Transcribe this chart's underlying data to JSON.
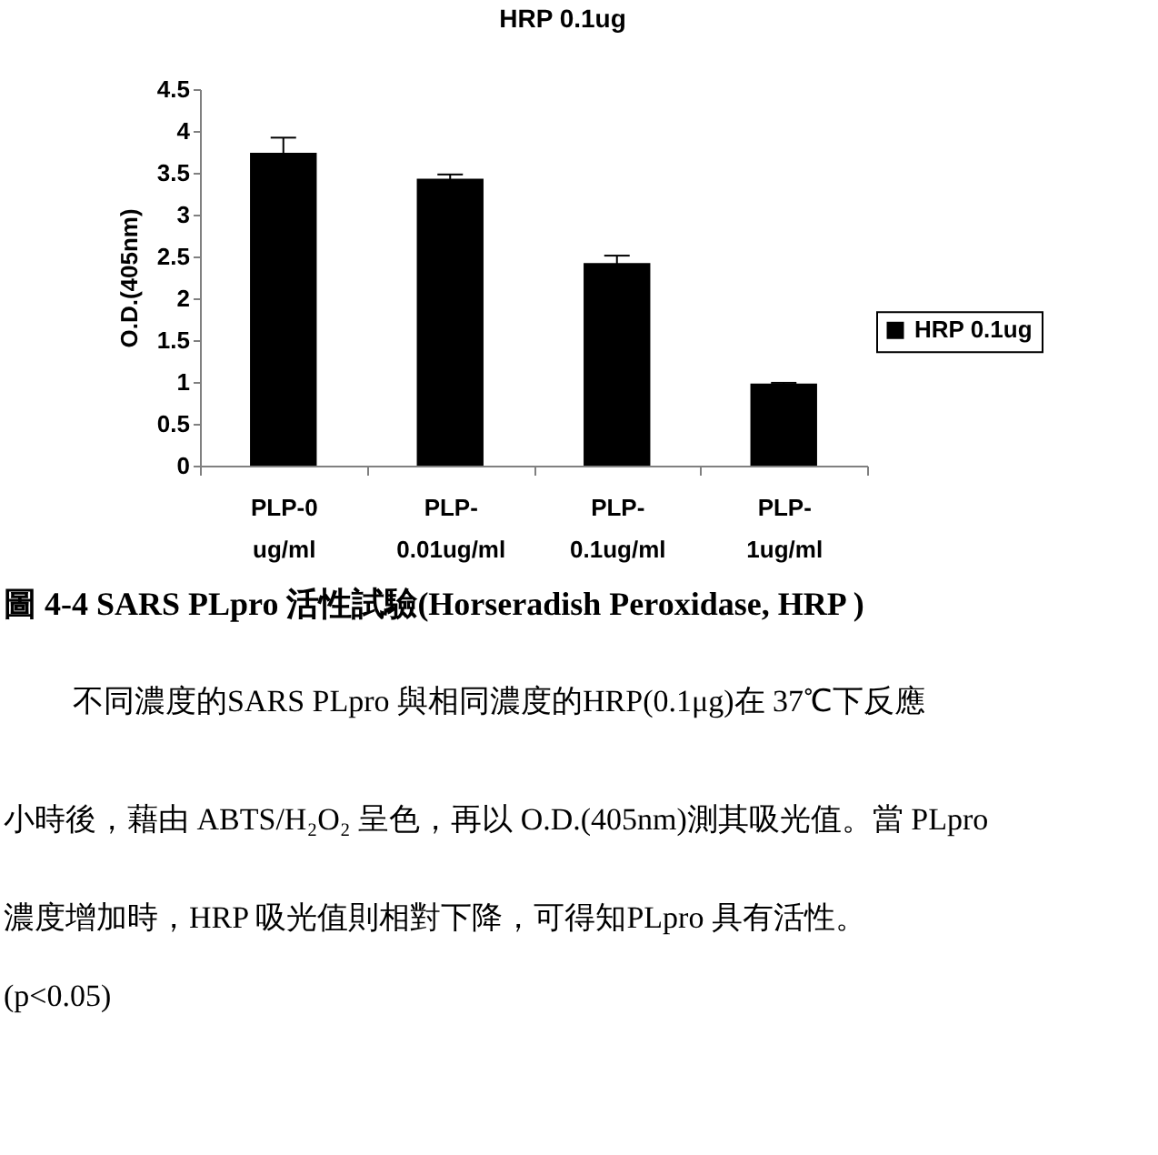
{
  "chart_data": {
    "type": "bar",
    "title": "HRP 0.1ug",
    "ylabel": "O.D.(405nm)",
    "categories": [
      "PLP-0 ug/ml",
      "PLP-0.01ug/ml",
      "PLP-0.1ug/ml",
      "PLP-1ug/ml"
    ],
    "series": [
      {
        "name": "HRP 0.1ug",
        "color": "#000000",
        "values": [
          3.74,
          3.43,
          2.42,
          0.98
        ],
        "errors": [
          0.18,
          0.05,
          0.09,
          0.01
        ]
      }
    ],
    "ylim": [
      0,
      4.5
    ],
    "yticks": [
      0,
      0.5,
      1,
      1.5,
      2,
      2.5,
      3,
      3.5,
      4,
      4.5
    ],
    "grid": false,
    "legend": "right",
    "annotations": [
      "圖 4-4 SARS PLpro 活性試驗(Horseradish Peroxidase, HRP )",
      "不同濃度的SARS  PLpro 與相同濃度的HRP(0.1μg)在 37℃下反應",
      "小時後，藉由 ABTS/H₂O₂ 呈色，再以 O.D.(405nm)測其吸光值。當 PLpro",
      "濃度增加時，HRP 吸光值則相對下降，可得知PLpro 具有活性。",
      "(p<0.05)"
    ]
  }
}
